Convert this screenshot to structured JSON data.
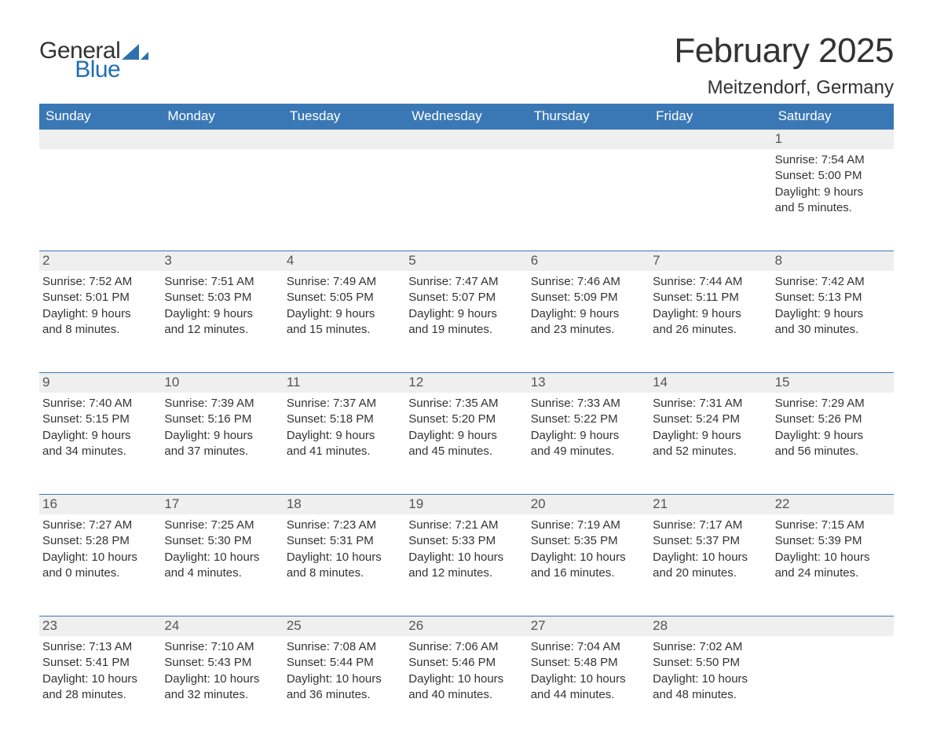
{
  "colors": {
    "header_bg": "#3a78b5",
    "daynum_bg": "#efefef",
    "sep": "#3a78b5",
    "logo_blue": "#1f6eb5",
    "text": "#333333"
  },
  "logo": {
    "line1": "General",
    "line2": "Blue"
  },
  "title": "February 2025",
  "location": "Meitzendorf, Germany",
  "dow": [
    "Sunday",
    "Monday",
    "Tuesday",
    "Wednesday",
    "Thursday",
    "Friday",
    "Saturday"
  ],
  "layout": {
    "first_weekday_index": 6,
    "days_in_month": 28
  },
  "days": [
    {
      "n": 1,
      "sunrise": "7:54 AM",
      "sunset": "5:00 PM",
      "dl_h": 9,
      "dl_m": 5
    },
    {
      "n": 2,
      "sunrise": "7:52 AM",
      "sunset": "5:01 PM",
      "dl_h": 9,
      "dl_m": 8
    },
    {
      "n": 3,
      "sunrise": "7:51 AM",
      "sunset": "5:03 PM",
      "dl_h": 9,
      "dl_m": 12
    },
    {
      "n": 4,
      "sunrise": "7:49 AM",
      "sunset": "5:05 PM",
      "dl_h": 9,
      "dl_m": 15
    },
    {
      "n": 5,
      "sunrise": "7:47 AM",
      "sunset": "5:07 PM",
      "dl_h": 9,
      "dl_m": 19
    },
    {
      "n": 6,
      "sunrise": "7:46 AM",
      "sunset": "5:09 PM",
      "dl_h": 9,
      "dl_m": 23
    },
    {
      "n": 7,
      "sunrise": "7:44 AM",
      "sunset": "5:11 PM",
      "dl_h": 9,
      "dl_m": 26
    },
    {
      "n": 8,
      "sunrise": "7:42 AM",
      "sunset": "5:13 PM",
      "dl_h": 9,
      "dl_m": 30
    },
    {
      "n": 9,
      "sunrise": "7:40 AM",
      "sunset": "5:15 PM",
      "dl_h": 9,
      "dl_m": 34
    },
    {
      "n": 10,
      "sunrise": "7:39 AM",
      "sunset": "5:16 PM",
      "dl_h": 9,
      "dl_m": 37
    },
    {
      "n": 11,
      "sunrise": "7:37 AM",
      "sunset": "5:18 PM",
      "dl_h": 9,
      "dl_m": 41
    },
    {
      "n": 12,
      "sunrise": "7:35 AM",
      "sunset": "5:20 PM",
      "dl_h": 9,
      "dl_m": 45
    },
    {
      "n": 13,
      "sunrise": "7:33 AM",
      "sunset": "5:22 PM",
      "dl_h": 9,
      "dl_m": 49
    },
    {
      "n": 14,
      "sunrise": "7:31 AM",
      "sunset": "5:24 PM",
      "dl_h": 9,
      "dl_m": 52
    },
    {
      "n": 15,
      "sunrise": "7:29 AM",
      "sunset": "5:26 PM",
      "dl_h": 9,
      "dl_m": 56
    },
    {
      "n": 16,
      "sunrise": "7:27 AM",
      "sunset": "5:28 PM",
      "dl_h": 10,
      "dl_m": 0
    },
    {
      "n": 17,
      "sunrise": "7:25 AM",
      "sunset": "5:30 PM",
      "dl_h": 10,
      "dl_m": 4
    },
    {
      "n": 18,
      "sunrise": "7:23 AM",
      "sunset": "5:31 PM",
      "dl_h": 10,
      "dl_m": 8
    },
    {
      "n": 19,
      "sunrise": "7:21 AM",
      "sunset": "5:33 PM",
      "dl_h": 10,
      "dl_m": 12
    },
    {
      "n": 20,
      "sunrise": "7:19 AM",
      "sunset": "5:35 PM",
      "dl_h": 10,
      "dl_m": 16
    },
    {
      "n": 21,
      "sunrise": "7:17 AM",
      "sunset": "5:37 PM",
      "dl_h": 10,
      "dl_m": 20
    },
    {
      "n": 22,
      "sunrise": "7:15 AM",
      "sunset": "5:39 PM",
      "dl_h": 10,
      "dl_m": 24
    },
    {
      "n": 23,
      "sunrise": "7:13 AM",
      "sunset": "5:41 PM",
      "dl_h": 10,
      "dl_m": 28
    },
    {
      "n": 24,
      "sunrise": "7:10 AM",
      "sunset": "5:43 PM",
      "dl_h": 10,
      "dl_m": 32
    },
    {
      "n": 25,
      "sunrise": "7:08 AM",
      "sunset": "5:44 PM",
      "dl_h": 10,
      "dl_m": 36
    },
    {
      "n": 26,
      "sunrise": "7:06 AM",
      "sunset": "5:46 PM",
      "dl_h": 10,
      "dl_m": 40
    },
    {
      "n": 27,
      "sunrise": "7:04 AM",
      "sunset": "5:48 PM",
      "dl_h": 10,
      "dl_m": 44
    },
    {
      "n": 28,
      "sunrise": "7:02 AM",
      "sunset": "5:50 PM",
      "dl_h": 10,
      "dl_m": 48
    }
  ],
  "labels": {
    "sunrise": "Sunrise: ",
    "sunset": "Sunset: ",
    "daylight": "Daylight: ",
    "hours": " hours",
    "and": "and ",
    "minutes": " minutes."
  }
}
